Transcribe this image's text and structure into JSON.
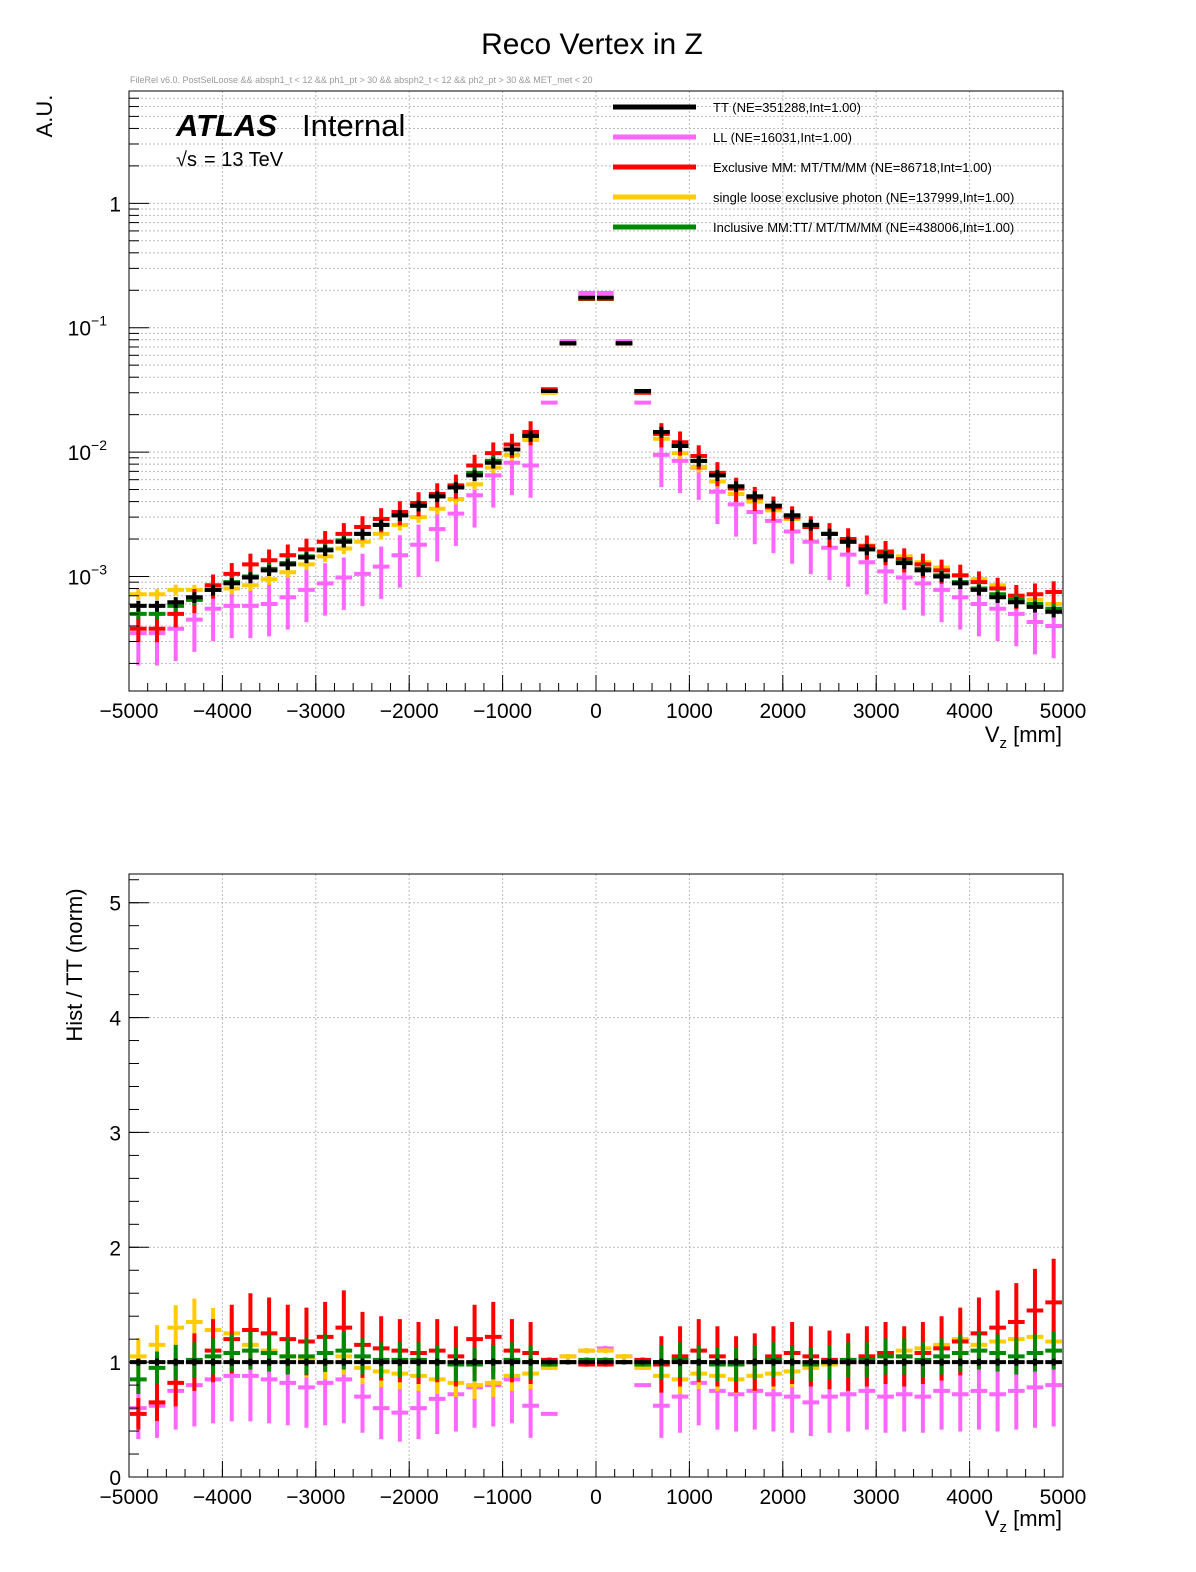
{
  "title": "Reco Vertex in Z",
  "subtitle": "FileRel v6.0. PostSelLoose && absph1_t < 12 && ph1_pt > 30 && absph2_t < 12 && ph2_pt > 30 && MET_met < 20",
  "atlas_label": "ATLAS",
  "atlas_status": "Internal",
  "energy_sqrt": "√s",
  "energy_value": "= 13 TeV",
  "colors": {
    "TT": "#000000",
    "LL": "#ff66ff",
    "ExclMM": "#ff0000",
    "single": "#ffcc00",
    "InclMM": "#008800"
  },
  "chart_data": [
    {
      "type": "scatter",
      "title": "Reco Vertex in Z",
      "xlabel_main": "V",
      "xlabel_sub": "z",
      "xlabel_unit": " [mm]",
      "ylabel": "A.U.",
      "yscale": "log",
      "xlim": [
        -5000,
        5000
      ],
      "ylim": [
        0.00012,
        8
      ],
      "x_ticks": [
        "−5000",
        "−4000",
        "−3000",
        "−2000",
        "−1000",
        "0",
        "1000",
        "2000",
        "3000",
        "4000",
        "5000"
      ],
      "y_ticks": [
        {
          "base": "1",
          "exp": ""
        },
        {
          "base": "10",
          "exp": "−1"
        },
        {
          "base": "10",
          "exp": "−2"
        },
        {
          "base": "10",
          "exp": "−3"
        }
      ],
      "x": [
        -4900,
        -4700,
        -4500,
        -4300,
        -4100,
        -3900,
        -3700,
        -3500,
        -3300,
        -3100,
        -2900,
        -2700,
        -2500,
        -2300,
        -2100,
        -1900,
        -1700,
        -1500,
        -1300,
        -1100,
        -900,
        -700,
        -500,
        -300,
        -100,
        100,
        300,
        500,
        700,
        900,
        1100,
        1300,
        1500,
        1700,
        1900,
        2100,
        2300,
        2500,
        2700,
        2900,
        3100,
        3300,
        3500,
        3700,
        3900,
        4100,
        4300,
        4500,
        4700,
        4900
      ],
      "series": [
        {
          "name": "TT",
          "legend": "TT (NE=351288,Int=1.00)",
          "values": [
            0.00058,
            0.00058,
            0.00062,
            0.00068,
            0.00078,
            0.00088,
            0.00098,
            0.00112,
            0.00125,
            0.00142,
            0.00162,
            0.0019,
            0.0022,
            0.0026,
            0.0031,
            0.0037,
            0.0044,
            0.0052,
            0.0065,
            0.0082,
            0.0105,
            0.0135,
            0.031,
            0.075,
            0.175,
            0.175,
            0.075,
            0.031,
            0.0145,
            0.0112,
            0.0085,
            0.0065,
            0.0053,
            0.0044,
            0.0037,
            0.0031,
            0.0026,
            0.0022,
            0.0019,
            0.00165,
            0.00145,
            0.00128,
            0.00112,
            0.001,
            0.00088,
            0.00078,
            0.00068,
            0.00062,
            0.00057,
            0.00052
          ]
        },
        {
          "name": "LL",
          "legend": "LL (NE=16031,Int=1.00)",
          "values": [
            0.00035,
            0.00035,
            0.00038,
            0.00045,
            0.00055,
            0.00058,
            0.00058,
            0.0006,
            0.00068,
            0.00078,
            0.00088,
            0.00098,
            0.00105,
            0.0012,
            0.00148,
            0.0018,
            0.0024,
            0.0032,
            0.0045,
            0.0065,
            0.0082,
            0.0078,
            0.025,
            0.078,
            0.19,
            0.19,
            0.078,
            0.025,
            0.0095,
            0.0085,
            0.0075,
            0.0048,
            0.0038,
            0.0033,
            0.0028,
            0.0023,
            0.0019,
            0.0017,
            0.0015,
            0.0013,
            0.0011,
            0.00098,
            0.00088,
            0.00078,
            0.00068,
            0.0006,
            0.00055,
            0.0005,
            0.00043,
            0.0004
          ]
        },
        {
          "name": "ExclMM",
          "legend": "Exclusive MM: MT/TM/MM (NE=86718,Int=1.00)",
          "values": [
            0.00038,
            0.00038,
            0.0005,
            0.00065,
            0.00085,
            0.00105,
            0.00125,
            0.00135,
            0.00148,
            0.00165,
            0.0019,
            0.0022,
            0.0025,
            0.0029,
            0.0033,
            0.0039,
            0.0046,
            0.0054,
            0.0078,
            0.0098,
            0.0115,
            0.0145,
            0.032,
            0.075,
            0.17,
            0.17,
            0.075,
            0.03,
            0.014,
            0.012,
            0.0093,
            0.0068,
            0.0051,
            0.0043,
            0.0036,
            0.003,
            0.0025,
            0.0022,
            0.002,
            0.00175,
            0.00158,
            0.00138,
            0.00125,
            0.00112,
            0.00102,
            0.0009,
            0.0008,
            0.0007,
            0.00072,
            0.00075
          ]
        },
        {
          "name": "single",
          "legend": "single loose exclusive photon (NE=137999,Int=1.00)",
          "values": [
            0.00072,
            0.00072,
            0.00078,
            0.00078,
            0.00078,
            0.0008,
            0.00085,
            0.00095,
            0.00108,
            0.00125,
            0.00145,
            0.00168,
            0.0019,
            0.0022,
            0.0026,
            0.003,
            0.0035,
            0.0042,
            0.0055,
            0.0075,
            0.0095,
            0.0125,
            0.03,
            0.074,
            0.17,
            0.17,
            0.074,
            0.03,
            0.0128,
            0.0098,
            0.0076,
            0.0058,
            0.0046,
            0.004,
            0.0034,
            0.0029,
            0.0025,
            0.0022,
            0.002,
            0.00178,
            0.0016,
            0.00145,
            0.0013,
            0.00118,
            0.00102,
            0.00095,
            0.00085,
            0.0007,
            0.00065,
            0.0006
          ]
        },
        {
          "name": "InclMM",
          "legend": "Inclusive MM:TT/ MT/TM/MM (NE=438006,Int=1.00)",
          "values": [
            0.0005,
            0.0005,
            0.00058,
            0.00065,
            0.00078,
            0.0009,
            0.001,
            0.00115,
            0.00128,
            0.00145,
            0.00165,
            0.00195,
            0.0022,
            0.0026,
            0.0031,
            0.0037,
            0.0044,
            0.0052,
            0.0068,
            0.0085,
            0.0105,
            0.0135,
            0.031,
            0.075,
            0.172,
            0.172,
            0.075,
            0.031,
            0.0145,
            0.0112,
            0.0085,
            0.0065,
            0.0053,
            0.0044,
            0.0037,
            0.0031,
            0.0026,
            0.0022,
            0.0019,
            0.00165,
            0.00148,
            0.0013,
            0.00115,
            0.00102,
            0.0009,
            0.0008,
            0.00072,
            0.00065,
            0.0006,
            0.00055
          ]
        }
      ]
    },
    {
      "type": "scatter",
      "xlabel_main": "V",
      "xlabel_sub": "z",
      "xlabel_unit": " [mm]",
      "ylabel": "Hist / TT (norm)",
      "xlim": [
        -5000,
        5000
      ],
      "ylim": [
        0,
        5.25
      ],
      "x_ticks": [
        "−5000",
        "−4000",
        "−3000",
        "−2000",
        "−1000",
        "0",
        "1000",
        "2000",
        "3000",
        "4000",
        "5000"
      ],
      "y_ticks": [
        "0",
        "1",
        "2",
        "3",
        "4",
        "5"
      ],
      "x": [
        -4900,
        -4700,
        -4500,
        -4300,
        -4100,
        -3900,
        -3700,
        -3500,
        -3300,
        -3100,
        -2900,
        -2700,
        -2500,
        -2300,
        -2100,
        -1900,
        -1700,
        -1500,
        -1300,
        -1100,
        -900,
        -700,
        -500,
        -300,
        -100,
        100,
        300,
        500,
        700,
        900,
        1100,
        1300,
        1500,
        1700,
        1900,
        2100,
        2300,
        2500,
        2700,
        2900,
        3100,
        3300,
        3500,
        3700,
        3900,
        4100,
        4300,
        4500,
        4700,
        4900
      ],
      "series": [
        {
          "name": "TT",
          "values": [
            1,
            1,
            1,
            1,
            1,
            1,
            1,
            1,
            1,
            1,
            1,
            1,
            1,
            1,
            1,
            1,
            1,
            1,
            1,
            1,
            1,
            1,
            1,
            1,
            1,
            1,
            1,
            1,
            1,
            1,
            1,
            1,
            1,
            1,
            1,
            1,
            1,
            1,
            1,
            1,
            1,
            1,
            1,
            1,
            1,
            1,
            1,
            1,
            1,
            1
          ]
        },
        {
          "name": "LL",
          "values": [
            0.6,
            0.62,
            0.75,
            0.8,
            0.85,
            0.88,
            0.88,
            0.85,
            0.82,
            0.78,
            0.82,
            0.85,
            0.7,
            0.6,
            0.56,
            0.6,
            0.68,
            0.72,
            0.78,
            0.8,
            0.85,
            0.62,
            0.55,
            1.05,
            1.1,
            1.12,
            1.05,
            0.8,
            0.62,
            0.7,
            0.82,
            0.75,
            0.72,
            0.75,
            0.72,
            0.7,
            0.65,
            0.7,
            0.72,
            0.75,
            0.7,
            0.72,
            0.7,
            0.75,
            0.72,
            0.75,
            0.72,
            0.75,
            0.78,
            0.8
          ]
        },
        {
          "name": "ExclMM",
          "values": [
            0.55,
            0.65,
            0.82,
            1.0,
            1.1,
            1.2,
            1.28,
            1.25,
            1.2,
            1.18,
            1.22,
            1.3,
            1.15,
            1.12,
            1.1,
            1.08,
            1.1,
            1.05,
            1.2,
            1.22,
            1.1,
            1.08,
            1.02,
            1.0,
            0.98,
            0.98,
            1.0,
            1.02,
            0.98,
            1.05,
            1.1,
            1.05,
            0.98,
            1.0,
            1.05,
            1.08,
            1.05,
            1.02,
            1.0,
            1.05,
            1.08,
            1.05,
            1.08,
            1.12,
            1.18,
            1.25,
            1.3,
            1.35,
            1.45,
            1.52
          ]
        },
        {
          "name": "single",
          "values": [
            1.05,
            1.15,
            1.3,
            1.35,
            1.28,
            1.25,
            1.15,
            1.1,
            1.05,
            1.02,
            1.0,
            1.05,
            0.95,
            0.92,
            0.9,
            0.88,
            0.85,
            0.82,
            0.8,
            0.82,
            0.88,
            0.9,
            0.95,
            1.05,
            1.1,
            1.1,
            1.05,
            0.95,
            0.88,
            0.85,
            0.9,
            0.88,
            0.85,
            0.88,
            0.9,
            0.92,
            0.95,
            0.98,
            1.0,
            1.05,
            1.08,
            1.1,
            1.12,
            1.15,
            1.2,
            1.15,
            1.18,
            1.2,
            1.22,
            1.18
          ]
        },
        {
          "name": "InclMM",
          "values": [
            0.85,
            0.95,
            1.0,
            1.02,
            1.05,
            1.08,
            1.1,
            1.08,
            1.05,
            1.05,
            1.08,
            1.1,
            1.05,
            1.02,
            1.02,
            1.02,
            1.0,
            0.98,
            0.98,
            1.0,
            1.02,
            1.0,
            0.98,
            1.0,
            1.02,
            1.02,
            1.0,
            0.98,
            1.0,
            1.02,
            1.0,
            0.98,
            0.98,
            1.0,
            1.02,
            1.0,
            0.98,
            1.0,
            1.02,
            1.02,
            1.05,
            1.05,
            1.02,
            1.05,
            1.08,
            1.1,
            1.08,
            1.05,
            1.08,
            1.1
          ]
        }
      ]
    }
  ]
}
